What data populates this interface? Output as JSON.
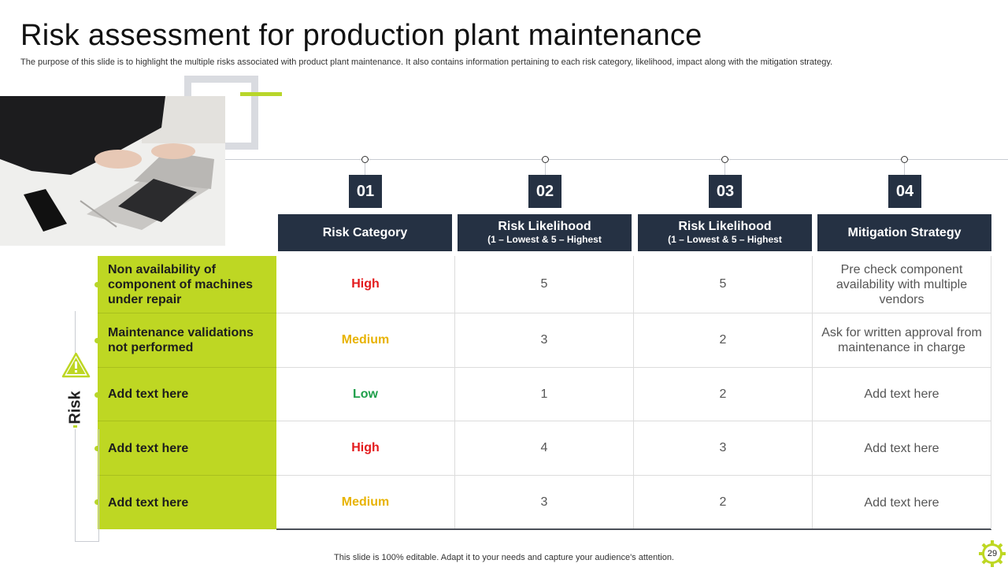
{
  "title": "Risk assessment for production plant maintenance",
  "subtitle": "The purpose of this slide is to highlight the multiple risks associated with product plant maintenance. It also contains information pertaining to each risk category, likelihood, impact along with the mitigation strategy.",
  "steps": [
    "01",
    "02",
    "03",
    "04"
  ],
  "headers": [
    {
      "main": "Risk Category",
      "sub": ""
    },
    {
      "main": "Risk Likelihood",
      "sub": "(1 – Lowest & 5 – Highest"
    },
    {
      "main": "Risk Likelihood",
      "sub": "(1 – Lowest & 5 – Highest"
    },
    {
      "main": "Mitigation Strategy",
      "sub": ""
    }
  ],
  "side_label": "Risk",
  "rows": [
    {
      "risk": "Non availability of component of machines under repair",
      "category": "High",
      "likelihood": "5",
      "impact": "5",
      "mitigation": "Pre check component availability with multiple vendors"
    },
    {
      "risk": "Maintenance validations not performed",
      "category": "Medium",
      "likelihood": "3",
      "impact": "2",
      "mitigation": "Ask for written approval from maintenance in charge"
    },
    {
      "risk": "Add text here",
      "category": "Low",
      "likelihood": "1",
      "impact": "2",
      "mitigation": "Add text here"
    },
    {
      "risk": "Add text here",
      "category": "High",
      "likelihood": "4",
      "impact": "3",
      "mitigation": "Add text here"
    },
    {
      "risk": "Add text here",
      "category": "Medium",
      "likelihood": "3",
      "impact": "2",
      "mitigation": "Add text here"
    }
  ],
  "colors": {
    "accent": "#bed723",
    "navy": "#253143",
    "high": "#e31a1c",
    "medium": "#e8b300",
    "low": "#1e9f4a"
  },
  "footer": "This slide is 100% editable. Adapt it to your needs and capture your audience's attention.",
  "page_number": "29"
}
